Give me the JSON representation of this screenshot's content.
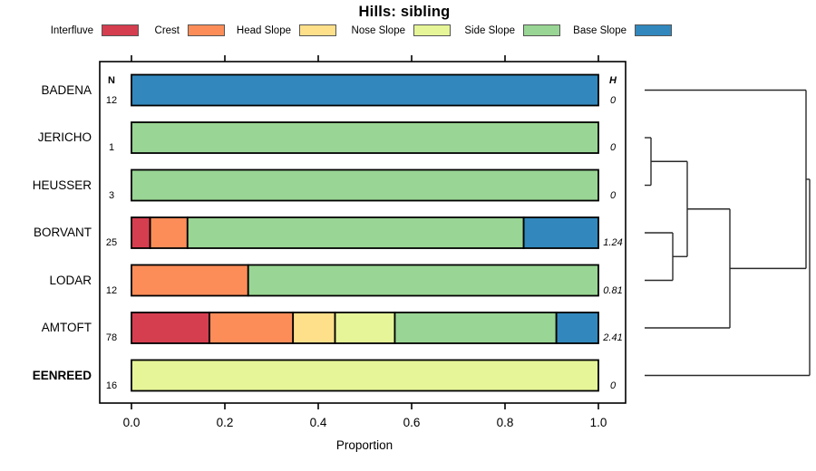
{
  "title": "Hills: sibling",
  "axis": {
    "xlabel": "Proportion"
  },
  "columns": {
    "n_header": "N",
    "h_header": "H"
  },
  "chart_data": {
    "type": "bar",
    "stacked": true,
    "orientation": "horizontal",
    "title": "Hills: sibling",
    "xlabel": "Proportion",
    "xlim": [
      0,
      1
    ],
    "xticks": [
      0.0,
      0.2,
      0.4,
      0.6,
      0.8,
      1.0
    ],
    "xtick_labels": [
      "0.0",
      "0.2",
      "0.4",
      "0.6",
      "0.8",
      "1.0"
    ],
    "grid": false,
    "legend_position": "top",
    "series": [
      {
        "name": "Interfluve",
        "color": "#d53e4f"
      },
      {
        "name": "Crest",
        "color": "#fc8d59"
      },
      {
        "name": "Head Slope",
        "color": "#fee08b"
      },
      {
        "name": "Nose Slope",
        "color": "#e6f598"
      },
      {
        "name": "Side Slope",
        "color": "#99d594"
      },
      {
        "name": "Base Slope",
        "color": "#3288bd"
      }
    ],
    "rows": [
      {
        "category": "BADENA",
        "n": "12",
        "h": "0",
        "bold": false,
        "proportions": [
          0,
          0,
          0,
          0,
          0,
          1
        ]
      },
      {
        "category": "JERICHO",
        "n": "1",
        "h": "0",
        "bold": false,
        "proportions": [
          0,
          0,
          0,
          0,
          1,
          0
        ]
      },
      {
        "category": "HEUSSER",
        "n": "3",
        "h": "0",
        "bold": false,
        "proportions": [
          0,
          0,
          0,
          0,
          1,
          0
        ]
      },
      {
        "category": "BORVANT",
        "n": "25",
        "h": "1.24",
        "bold": false,
        "proportions": [
          0.04,
          0.08,
          0,
          0,
          0.72,
          0.16
        ]
      },
      {
        "category": "LODAR",
        "n": "12",
        "h": "0.81",
        "bold": false,
        "proportions": [
          0,
          0.25,
          0,
          0,
          0.75,
          0
        ]
      },
      {
        "category": "AMTOFT",
        "n": "78",
        "h": "2.41",
        "bold": false,
        "proportions": [
          0.167,
          0.179,
          0.09,
          0.128,
          0.346,
          0.09
        ]
      },
      {
        "category": "EENREED",
        "n": "16",
        "h": "0",
        "bold": true,
        "proportions": [
          0,
          0,
          0,
          1,
          0,
          0
        ]
      }
    ],
    "dendrogram": {
      "tree": {
        "join": 893,
        "children": [
          {
            "join": 889,
            "children": [
              {
                "leaf": "BADENA"
              },
              {
                "join": 805,
                "children": [
                  {
                    "join": 758,
                    "children": [
                      {
                        "join": 718,
                        "children": [
                          {
                            "leaf": "JERICHO"
                          },
                          {
                            "leaf": "HEUSSER"
                          }
                        ]
                      },
                      {
                        "join": 742,
                        "children": [
                          {
                            "leaf": "BORVANT"
                          },
                          {
                            "leaf": "LODAR"
                          }
                        ]
                      }
                    ]
                  },
                  {
                    "leaf": "AMTOFT"
                  }
                ]
              }
            ]
          },
          {
            "leaf": "EENREED"
          }
        ]
      }
    }
  }
}
